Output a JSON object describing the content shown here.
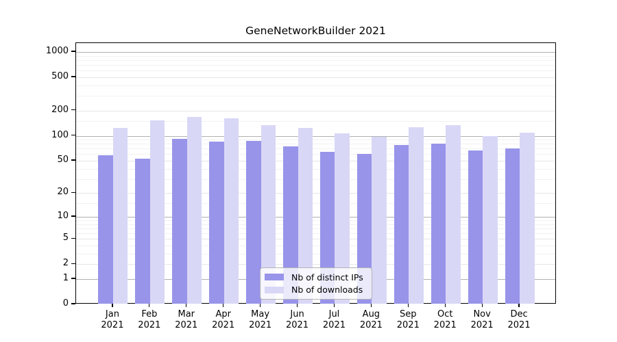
{
  "title": "GeneNetworkBuilder 2021",
  "chart_data": {
    "type": "bar",
    "title": "GeneNetworkBuilder 2021",
    "scale": "log(1+y)",
    "categories": [
      "Jan",
      "Feb",
      "Mar",
      "Apr",
      "May",
      "Jun",
      "Jul",
      "Aug",
      "Sep",
      "Oct",
      "Nov",
      "Dec"
    ],
    "year_label": "2021",
    "series": [
      {
        "name": "Nb of distinct IPs",
        "color": "#9894ea",
        "values": [
          58,
          53,
          92,
          85,
          87,
          74,
          64,
          60,
          78,
          81,
          67,
          70
        ]
      },
      {
        "name": "Nb of downloads",
        "color": "#d9d7f6",
        "values": [
          125,
          152,
          168,
          161,
          134,
          124,
          107,
          97,
          126,
          134,
          100,
          109
        ]
      }
    ],
    "y_ticks": [
      1000,
      500,
      200,
      100,
      50,
      20,
      10,
      5,
      2,
      1,
      0
    ],
    "ylim": [
      0,
      1275
    ],
    "grid": "both",
    "legend_position": "lower-center"
  },
  "colors": {
    "grid_major": "#b0b0b0",
    "grid_light": "#e6e6e6",
    "grid_minor": "#f1f1f1",
    "axis": "#000000",
    "background": "#ffffff"
  }
}
